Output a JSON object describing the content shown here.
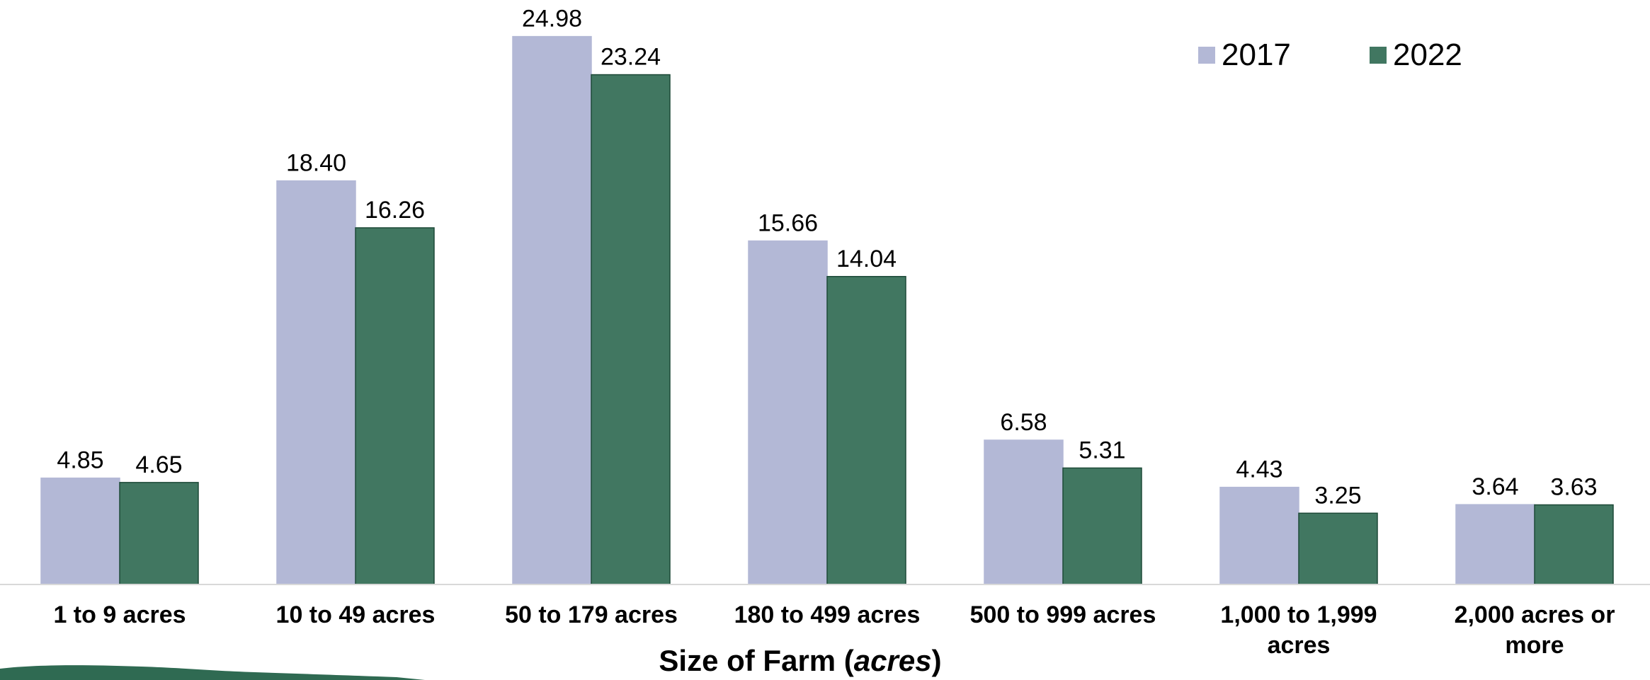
{
  "chart_data": {
    "type": "bar",
    "categories": [
      [
        "1 to 9 acres"
      ],
      [
        "10 to 49 acres"
      ],
      [
        "50 to 179 acres"
      ],
      [
        "180 to 499 acres"
      ],
      [
        "500 to 999 acres"
      ],
      [
        "1,000 to 1,999",
        "acres"
      ],
      [
        "2,000 acres or",
        "more"
      ]
    ],
    "series": [
      {
        "name": "2017",
        "color": "#b3b8d6",
        "values": [
          4.85,
          18.4,
          24.98,
          15.66,
          6.58,
          4.43,
          3.64
        ],
        "labels": [
          "4.85",
          "18.40",
          "24.98",
          "15.66",
          "6.58",
          "4.43",
          "3.64"
        ]
      },
      {
        "name": "2022",
        "color": "#417761",
        "values": [
          4.65,
          16.26,
          23.24,
          14.04,
          5.31,
          3.25,
          3.63
        ],
        "labels": [
          "4.65",
          "16.26",
          "23.24",
          "14.04",
          "5.31",
          "3.25",
          "3.63"
        ]
      }
    ],
    "xlabel": {
      "main": "Size of Farm (",
      "italic": "acres",
      "end": ")"
    },
    "ylabel": "",
    "ylim": [
      0,
      25
    ],
    "grid": false,
    "legend": "top-right",
    "axis_color": "#d9d9d9"
  }
}
